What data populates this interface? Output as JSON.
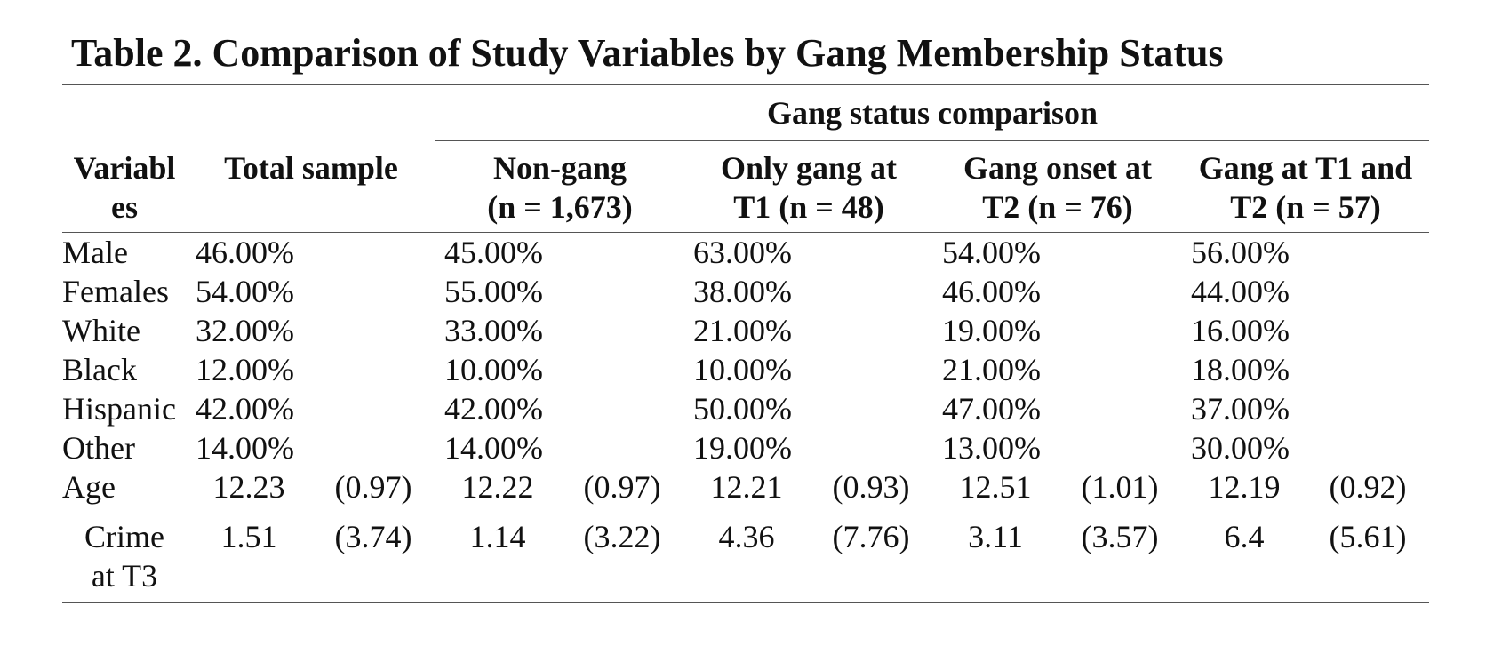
{
  "title": "Table 2. Comparison of Study Variables by Gang Membership Status",
  "group_header": "Gang status comparison",
  "columns": {
    "variables": [
      "Variabl",
      "es"
    ],
    "total": "Total sample",
    "non_gang": [
      "Non-gang",
      "(n = 1,673)"
    ],
    "only_t1": [
      "Only gang at",
      "T1 (n = 48)"
    ],
    "onset_t2": [
      "Gang onset at",
      "T2 (n = 76)"
    ],
    "t1_t2": [
      "Gang at T1 and",
      "T2 (n = 57)"
    ]
  },
  "pct_rows": [
    {
      "label": "Male",
      "values": [
        "46.00%",
        "45.00%",
        "63.00%",
        "54.00%",
        "56.00%"
      ]
    },
    {
      "label": "Females",
      "values": [
        "54.00%",
        "55.00%",
        "38.00%",
        "46.00%",
        "44.00%"
      ]
    },
    {
      "label": "White",
      "values": [
        "32.00%",
        "33.00%",
        "21.00%",
        "19.00%",
        "16.00%"
      ]
    },
    {
      "label": "Black",
      "values": [
        "12.00%",
        "10.00%",
        "10.00%",
        "21.00%",
        "18.00%"
      ]
    },
    {
      "label": "Hispanic",
      "values": [
        "42.00%",
        "42.00%",
        "50.00%",
        "47.00%",
        "37.00%"
      ]
    },
    {
      "label": "Other",
      "values": [
        "14.00%",
        "14.00%",
        "19.00%",
        "13.00%",
        "30.00%"
      ]
    }
  ],
  "mean_rows": [
    {
      "label": [
        "Age"
      ],
      "means": [
        "12.23",
        "12.22",
        "12.21",
        "12.51",
        "12.19"
      ],
      "sds": [
        "(0.97)",
        "(0.97)",
        "(0.93)",
        "(1.01)",
        "(0.92)"
      ]
    },
    {
      "label": [
        "Crime",
        "at T3"
      ],
      "means": [
        "1.51",
        "1.14",
        "4.36",
        "3.11",
        "6.4"
      ],
      "sds": [
        "(3.74)",
        "(3.22)",
        "(7.76)",
        "(3.57)",
        "(5.61)"
      ]
    }
  ]
}
